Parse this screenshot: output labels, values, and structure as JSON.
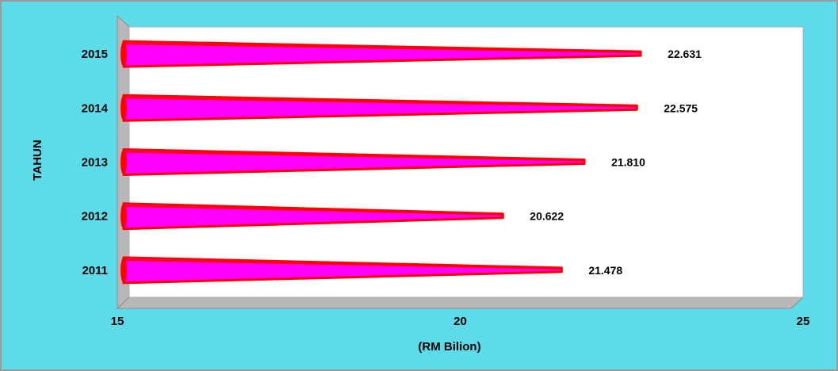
{
  "colors": {
    "background": "#5ddbe9",
    "plot_area": "#ffffff",
    "bar_fill": "#ff00ff",
    "bar_edge": "#ff0000",
    "wall": "#b8b8b8"
  },
  "chart_data": {
    "type": "bar",
    "orientation": "horizontal",
    "style": "3d-cone",
    "categories": [
      "2011",
      "2012",
      "2013",
      "2014",
      "2015"
    ],
    "values": [
      21.478,
      20.622,
      21.81,
      22.575,
      22.631
    ],
    "data_labels": [
      "21.478",
      "20.622",
      "21.810",
      "22.575",
      "22.631"
    ],
    "xlim": [
      15,
      25
    ],
    "x_ticks": [
      15,
      20,
      25
    ],
    "x_tick_labels": [
      "15",
      "20",
      "25"
    ],
    "xlabel": "(RM Bilion)",
    "ylabel": "TAHUN",
    "grid": false,
    "legend": "none"
  }
}
